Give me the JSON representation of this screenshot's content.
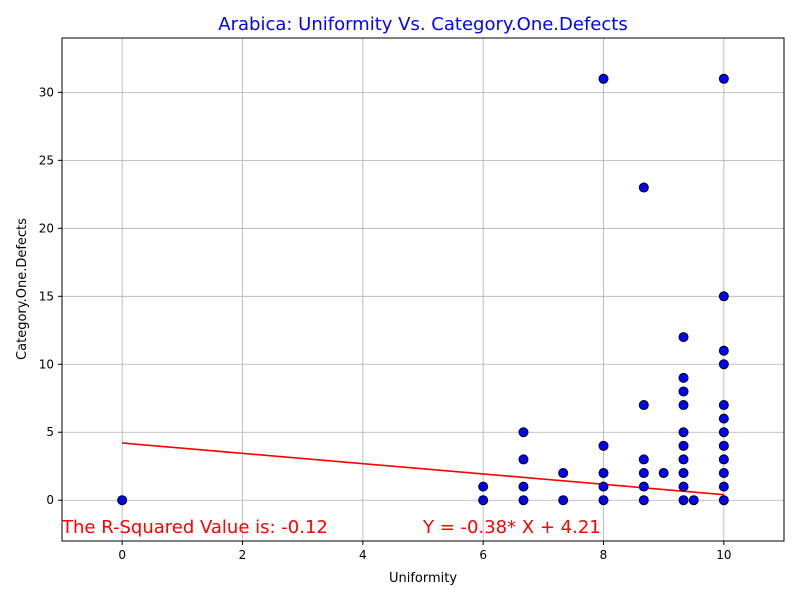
{
  "chart_data": {
    "type": "scatter",
    "title": "Arabica: Uniformity Vs. Category.One.Defects",
    "title_color": "#0000ff",
    "xlabel": "Uniformity",
    "ylabel": "Category.One.Defects",
    "xlim": [
      -1,
      11
    ],
    "ylim": [
      -3,
      34
    ],
    "xticks": [
      0,
      2,
      4,
      6,
      8,
      10
    ],
    "yticks": [
      0,
      5,
      10,
      15,
      20,
      25,
      30
    ],
    "grid": true,
    "point_color": "#0000ff",
    "point_edge_color": "#000000",
    "line_color": "#ff0000",
    "annotation_color": "#ff0000",
    "points": [
      {
        "x": 0,
        "y": 0
      },
      {
        "x": 6,
        "y": 0
      },
      {
        "x": 6,
        "y": 1
      },
      {
        "x": 6.67,
        "y": 0
      },
      {
        "x": 6.67,
        "y": 1
      },
      {
        "x": 6.67,
        "y": 3
      },
      {
        "x": 6.67,
        "y": 5
      },
      {
        "x": 7.33,
        "y": 0
      },
      {
        "x": 7.33,
        "y": 2
      },
      {
        "x": 8,
        "y": 0
      },
      {
        "x": 8,
        "y": 1
      },
      {
        "x": 8,
        "y": 2
      },
      {
        "x": 8,
        "y": 4
      },
      {
        "x": 8,
        "y": 31
      },
      {
        "x": 8.67,
        "y": 0
      },
      {
        "x": 8.67,
        "y": 1
      },
      {
        "x": 8.67,
        "y": 2
      },
      {
        "x": 8.67,
        "y": 3
      },
      {
        "x": 8.67,
        "y": 7
      },
      {
        "x": 8.67,
        "y": 23
      },
      {
        "x": 9,
        "y": 2
      },
      {
        "x": 9.33,
        "y": 0
      },
      {
        "x": 9.33,
        "y": 1
      },
      {
        "x": 9.33,
        "y": 2
      },
      {
        "x": 9.33,
        "y": 3
      },
      {
        "x": 9.33,
        "y": 4
      },
      {
        "x": 9.33,
        "y": 5
      },
      {
        "x": 9.33,
        "y": 7
      },
      {
        "x": 9.33,
        "y": 8
      },
      {
        "x": 9.33,
        "y": 9
      },
      {
        "x": 9.33,
        "y": 12
      },
      {
        "x": 9.5,
        "y": 0
      },
      {
        "x": 10,
        "y": 0
      },
      {
        "x": 10,
        "y": 1
      },
      {
        "x": 10,
        "y": 2
      },
      {
        "x": 10,
        "y": 3
      },
      {
        "x": 10,
        "y": 4
      },
      {
        "x": 10,
        "y": 5
      },
      {
        "x": 10,
        "y": 6
      },
      {
        "x": 10,
        "y": 7
      },
      {
        "x": 10,
        "y": 10
      },
      {
        "x": 10,
        "y": 11
      },
      {
        "x": 10,
        "y": 15
      },
      {
        "x": 10,
        "y": 31
      }
    ],
    "regression": {
      "slope": -0.38,
      "intercept": 4.21,
      "x_range": [
        0,
        10
      ]
    },
    "annotations": {
      "r_squared": "The R-Squared Value is: -0.12",
      "equation": "Y = -0.38* X + 4.21"
    }
  }
}
